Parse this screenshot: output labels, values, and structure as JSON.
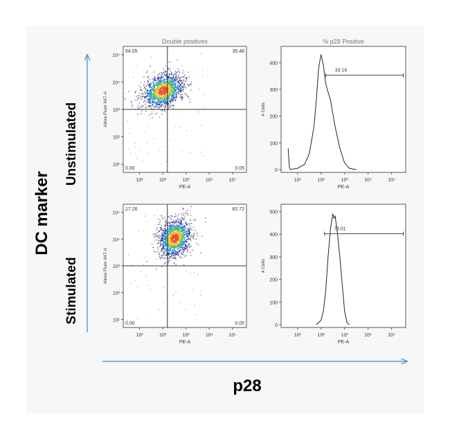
{
  "figure": {
    "y_axis_label": "DC marker",
    "x_axis_label": "p28",
    "row_labels": [
      "Unstimulated",
      "Stimulated"
    ],
    "accent_color": "#5b9bd5"
  },
  "chart_data": [
    {
      "type": "scatter",
      "title": "Double positives",
      "row": "Unstimulated",
      "xlabel": "PE-A",
      "ylabel": "Alexa Fluor 647-A",
      "log_x": true,
      "log_y": true,
      "x_ticks": [
        "10¹",
        "10²",
        "10³",
        "10⁴",
        "10⁵"
      ],
      "y_ticks": [
        "10⁵",
        "10⁴",
        "10³",
        "10²",
        "10¹"
      ],
      "quadrants": {
        "UL": "64.05",
        "UR": "35.48",
        "LL": "0.00",
        "LR": "0.05"
      },
      "gates": {
        "x": 2.2,
        "y": 3.0
      },
      "population": {
        "center_x": 2.0,
        "center_y": 3.7,
        "spread_x": 0.45,
        "spread_y": 0.3
      }
    },
    {
      "type": "line",
      "title": "% p28 Positive",
      "row": "Unstimulated",
      "xlabel": "PE-A",
      "ylabel": "# Cells",
      "log_x": true,
      "x_ticks": [
        "10¹",
        "10²",
        "10³",
        "10⁴",
        "10⁵"
      ],
      "ylim": [
        0,
        450
      ],
      "y_ticks": [
        0,
        100,
        200,
        300,
        400
      ],
      "marker_label": "33.16",
      "gate_range": [
        2.2,
        5.5
      ],
      "x": [
        0.6,
        0.65,
        0.7,
        0.8,
        1.0,
        1.3,
        1.5,
        1.7,
        1.8,
        1.9,
        2.0,
        2.1,
        2.2,
        2.3,
        2.4,
        2.5,
        2.6,
        2.8,
        3.0,
        3.2,
        3.5
      ],
      "y": [
        80,
        10,
        0,
        2,
        5,
        20,
        60,
        160,
        260,
        380,
        430,
        390,
        320,
        290,
        260,
        210,
        160,
        80,
        25,
        5,
        0
      ]
    },
    {
      "type": "scatter",
      "title": "",
      "row": "Stimulated",
      "xlabel": "PE-A",
      "ylabel": "Alexa Fluor 647-A",
      "log_x": true,
      "log_y": true,
      "x_ticks": [
        "10¹",
        "10²",
        "10³",
        "10⁴",
        "10⁵"
      ],
      "y_ticks": [
        "10⁵",
        "10⁴",
        "10³",
        "10²",
        "10¹"
      ],
      "quadrants": {
        "UL": "17.26",
        "UR": "82.72",
        "LL": "0.00",
        "LR": "0.05"
      },
      "gates": {
        "x": 2.2,
        "y": 3.0
      },
      "population": {
        "center_x": 2.5,
        "center_y": 4.05,
        "spread_x": 0.35,
        "spread_y": 0.35
      }
    },
    {
      "type": "line",
      "title": "",
      "row": "Stimulated",
      "xlabel": "PE-A",
      "ylabel": "# Cells",
      "log_x": true,
      "x_ticks": [
        "10¹",
        "10²",
        "10³",
        "10⁴",
        "10⁵"
      ],
      "ylim": [
        0,
        520
      ],
      "y_ticks": [
        0,
        100,
        200,
        300,
        400,
        500
      ],
      "marker_label": "79.01",
      "gate_range": [
        2.15,
        5.5
      ],
      "x": [
        1.8,
        2.0,
        2.1,
        2.2,
        2.3,
        2.4,
        2.5,
        2.55,
        2.6,
        2.65,
        2.7,
        2.8,
        2.9,
        3.0,
        3.1,
        3.2
      ],
      "y": [
        0,
        20,
        60,
        150,
        300,
        420,
        490,
        470,
        480,
        440,
        400,
        300,
        180,
        60,
        10,
        0
      ]
    }
  ]
}
